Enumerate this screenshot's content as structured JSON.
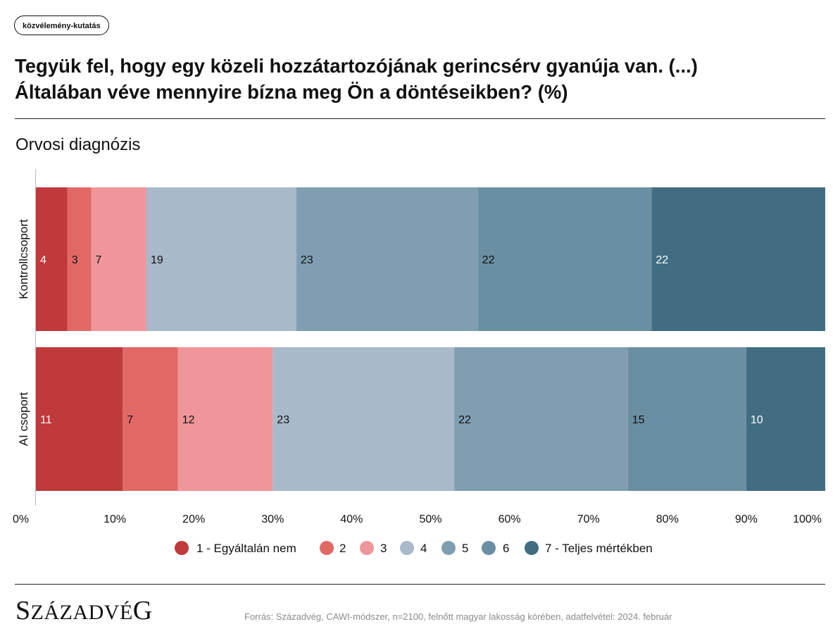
{
  "tag": "közvélemény-kutatás",
  "title_line1": "Tegyük fel, hogy egy közeli hozzátartozójának gerincsérv gyanúja van. (...)",
  "title_line2": "Általában véve mennyire bízna meg Ön a döntéseikben? (%)",
  "subtitle": "Orvosi diagnózis",
  "chart_data": {
    "type": "bar",
    "orientation": "horizontal",
    "stacked": "percent",
    "categories": [
      "Kontrollcsoport",
      "AI csoport"
    ],
    "series": [
      {
        "name": "1 - Egyáltalán nem",
        "values": [
          4,
          11
        ],
        "color": "#c0393b",
        "label_color": "#ffffff"
      },
      {
        "name": "2",
        "values": [
          3,
          7
        ],
        "color": "#e26866",
        "label_color": "#111111"
      },
      {
        "name": "3",
        "values": [
          7,
          12
        ],
        "color": "#f09599",
        "label_color": "#111111"
      },
      {
        "name": "4",
        "values": [
          19,
          23
        ],
        "color": "#a8b9ca",
        "label_color": "#111111"
      },
      {
        "name": "5",
        "values": [
          23,
          22
        ],
        "color": "#7f9eb2",
        "label_color": "#111111"
      },
      {
        "name": "6",
        "values": [
          22,
          15
        ],
        "color": "#6a8fa2",
        "label_color": "#111111"
      },
      {
        "name": "7 - Teljes mértékben",
        "values": [
          22,
          10
        ],
        "color": "#406d82",
        "label_color": "#ffffff"
      }
    ],
    "xlim": [
      0,
      100
    ],
    "xticks": [
      "0%",
      "10%",
      "20%",
      "30%",
      "40%",
      "50%",
      "60%",
      "70%",
      "80%",
      "90%",
      "100%"
    ],
    "legend_position": "bottom",
    "grid": false
  },
  "logo_text": "SzázadvéG",
  "source": "Forrás: Századvég, CAWI-módszer, n=2100, felnőtt magyar lakosság körében, adatfelvétel: 2024. február"
}
